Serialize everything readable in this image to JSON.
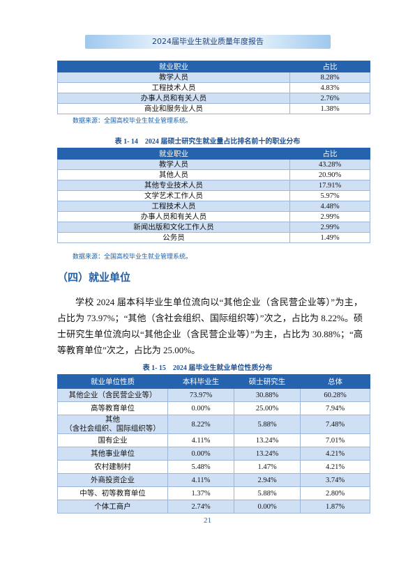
{
  "header": {
    "title": "2024届毕业生就业质量年度报告"
  },
  "table_a": {
    "columns": [
      "就业职业",
      "占比"
    ],
    "rows": [
      [
        "教学人员",
        "8.28%"
      ],
      [
        "工程技术人员",
        "4.83%"
      ],
      [
        "办事人员和有关人员",
        "2.76%"
      ],
      [
        "商业和服务业人员",
        "1.38%"
      ]
    ],
    "source": "数据来源：全国高校毕业生就业管理系统。"
  },
  "table_b": {
    "caption": "表 1- 14　2024 届硕士研究生就业量占比排名前十的职业分布",
    "columns": [
      "就业职业",
      "占比"
    ],
    "rows": [
      [
        "教学人员",
        "43.28%"
      ],
      [
        "其他人员",
        "20.90%"
      ],
      [
        "其他专业技术人员",
        "17.91%"
      ],
      [
        "文学艺术工作人员",
        "5.97%"
      ],
      [
        "工程技术人员",
        "4.48%"
      ],
      [
        "办事人员和有关人员",
        "2.99%"
      ],
      [
        "新闻出版和文化工作人员",
        "2.99%"
      ],
      [
        "公务员",
        "1.49%"
      ]
    ],
    "source": "数据来源：全国高校毕业生就业管理系统。"
  },
  "section": {
    "heading": "（四）就业单位",
    "paragraph": "学校 2024 届本科毕业生单位流向以“其他企业（含民营企业等）”为主，占比为 73.97%；“其他（含社会组织、国际组织等）”次之，占比为 8.22%。硕士研究生单位流向以“其他企业（含民营企业等）”为主，占比为 30.88%；“高等教育单位”次之，占比为 25.00%。"
  },
  "table_c": {
    "caption": "表 1- 15　2024 届毕业生就业单位性质分布",
    "columns": [
      "就业单位性质",
      "本科毕业生",
      "硕士研究生",
      "总体"
    ],
    "rows": [
      [
        "其他企业（含民营企业等）",
        "73.97%",
        "30.88%",
        "60.28%"
      ],
      [
        "高等教育单位",
        "0.00%",
        "25.00%",
        "7.94%"
      ],
      [
        "其他\n（含社会组织、国际组织等）",
        "8.22%",
        "5.88%",
        "7.48%"
      ],
      [
        "国有企业",
        "4.11%",
        "13.24%",
        "7.01%"
      ],
      [
        "其他事业单位",
        "0.00%",
        "13.24%",
        "4.21%"
      ],
      [
        "农村建制村",
        "5.48%",
        "1.47%",
        "4.21%"
      ],
      [
        "外商投资企业",
        "4.11%",
        "2.94%",
        "3.74%"
      ],
      [
        "中等、初等教育单位",
        "1.37%",
        "5.88%",
        "2.80%"
      ],
      [
        "个体工商户",
        "2.74%",
        "0.00%",
        "1.87%"
      ]
    ]
  },
  "page_number": "21"
}
